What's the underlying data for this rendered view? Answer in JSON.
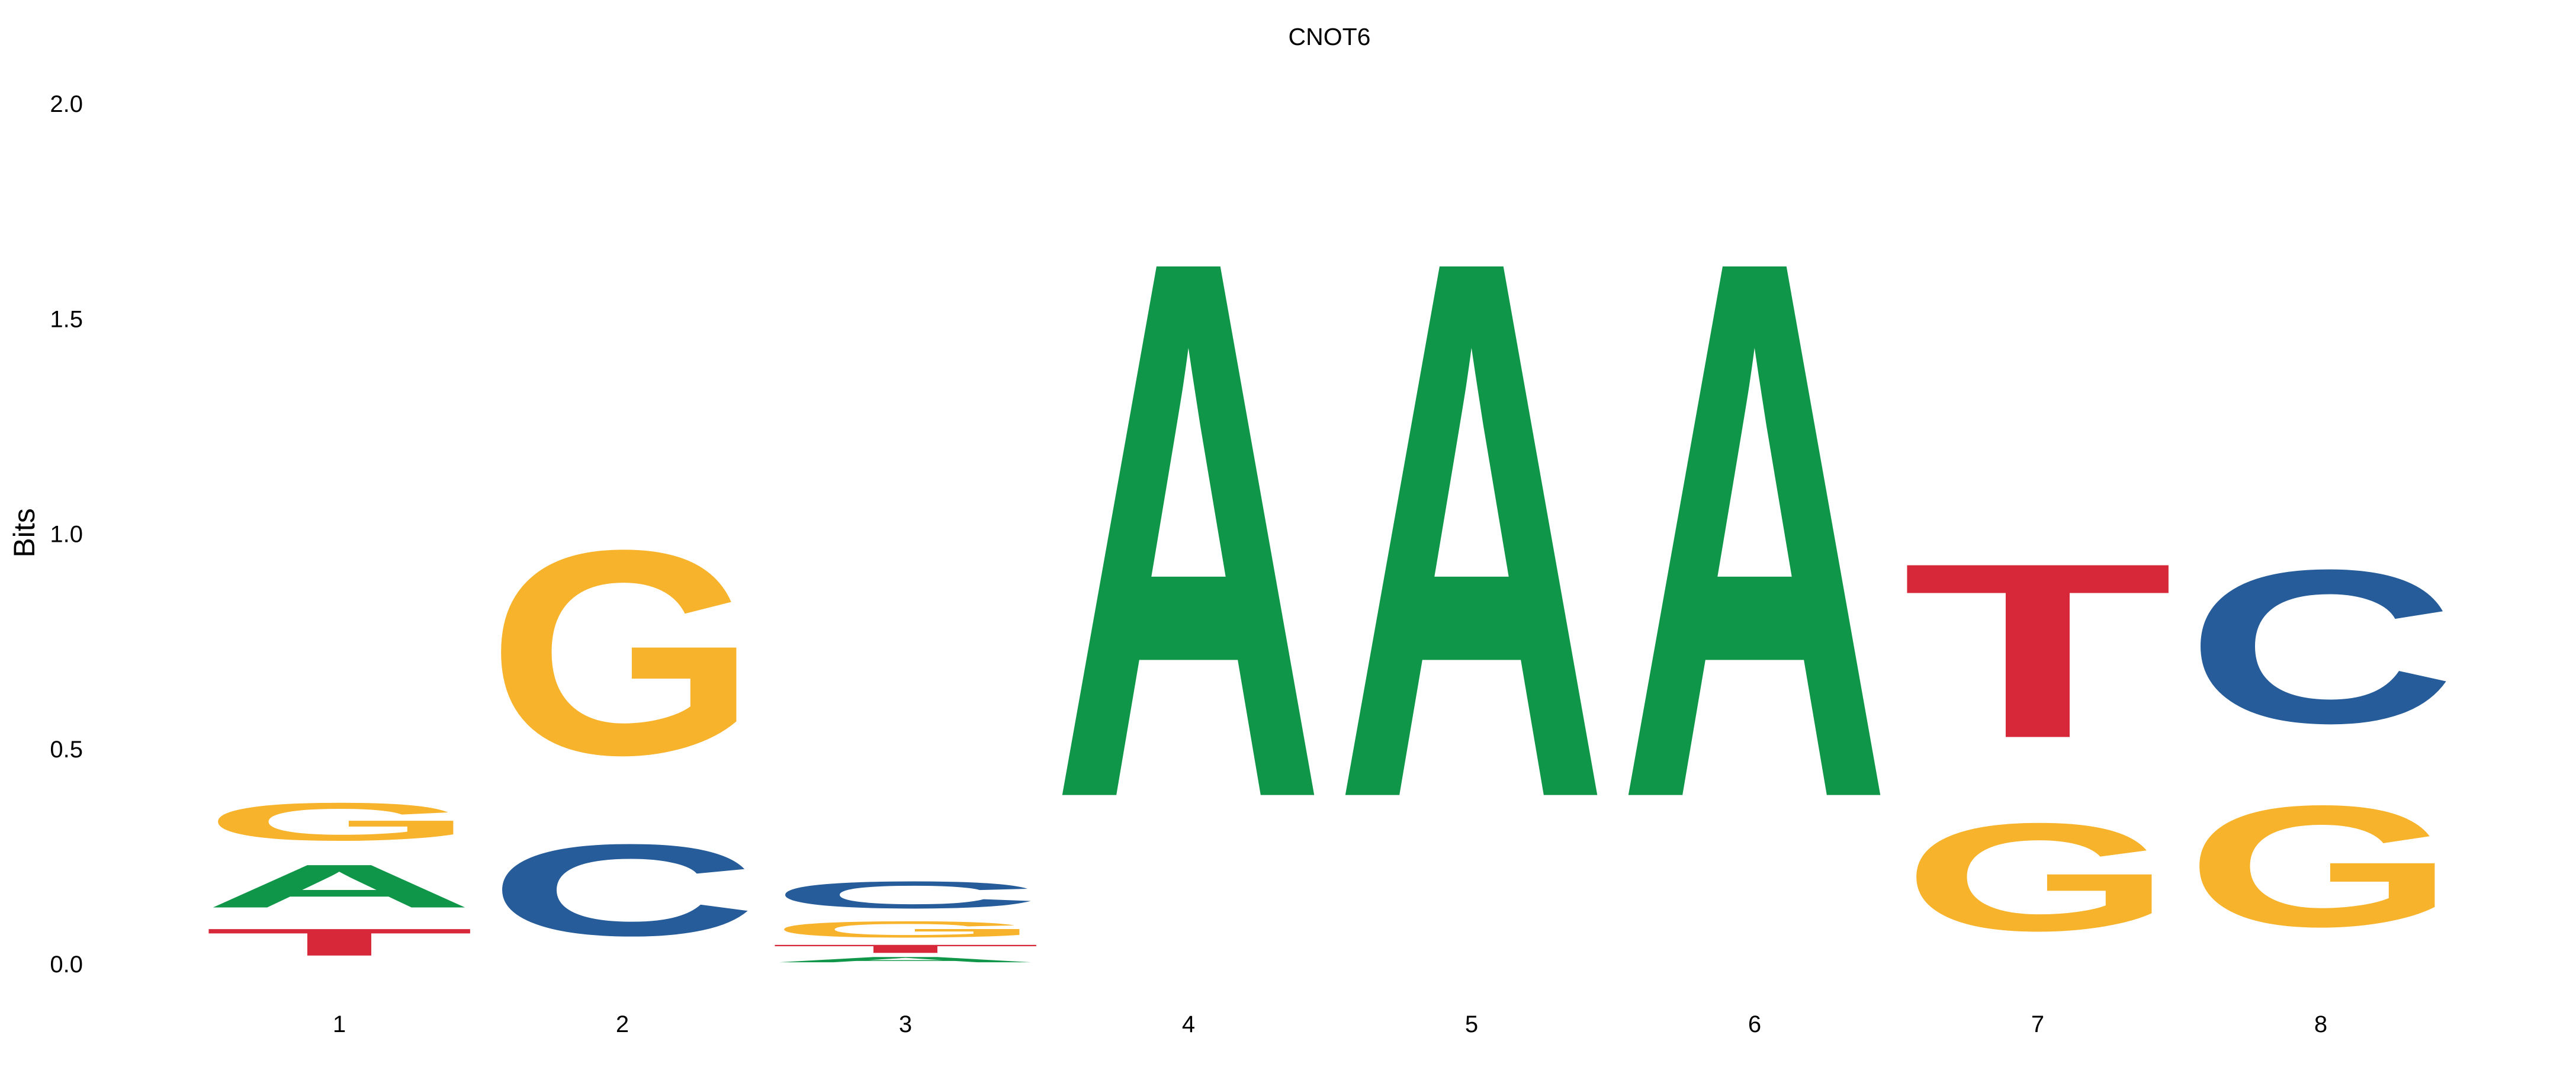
{
  "chart_data": {
    "type": "sequence-logo",
    "title": "CNOT6",
    "xlabel": "",
    "ylabel": "Bits",
    "ylim": [
      0,
      2.0
    ],
    "yticks": [
      "0.0",
      "0.5",
      "1.0",
      "1.5",
      "2.0"
    ],
    "ytick_values": [
      0,
      0.5,
      1.0,
      1.5,
      2.0
    ],
    "grid": false,
    "colors": {
      "A": "#109648",
      "C": "#255c99",
      "G": "#f7b32b",
      "T": "#d62839"
    },
    "positions": [
      {
        "label": "1",
        "stack": [
          {
            "letter": "T",
            "bits": 0.1
          },
          {
            "letter": "A",
            "bits": 0.16
          },
          {
            "letter": "G",
            "bits": 0.14
          }
        ]
      },
      {
        "label": "2",
        "stack": [
          {
            "letter": "C",
            "bits": 0.34
          },
          {
            "letter": "G",
            "bits": 0.76
          }
        ]
      },
      {
        "label": "3",
        "stack": [
          {
            "letter": "A",
            "bits": 0.02
          },
          {
            "letter": "T",
            "bits": 0.03
          },
          {
            "letter": "G",
            "bits": 0.06
          },
          {
            "letter": "C",
            "bits": 0.1
          }
        ]
      },
      {
        "label": "4",
        "stack": [
          {
            "letter": "A",
            "bits": 2.0
          }
        ]
      },
      {
        "label": "5",
        "stack": [
          {
            "letter": "A",
            "bits": 2.0
          }
        ]
      },
      {
        "label": "6",
        "stack": [
          {
            "letter": "A",
            "bits": 2.0
          }
        ]
      },
      {
        "label": "7",
        "stack": [
          {
            "letter": "G",
            "bits": 0.4
          },
          {
            "letter": "T",
            "bits": 0.65
          }
        ]
      },
      {
        "label": "8",
        "stack": [
          {
            "letter": "G",
            "bits": 0.45
          },
          {
            "letter": "C",
            "bits": 0.57
          }
        ]
      }
    ]
  }
}
